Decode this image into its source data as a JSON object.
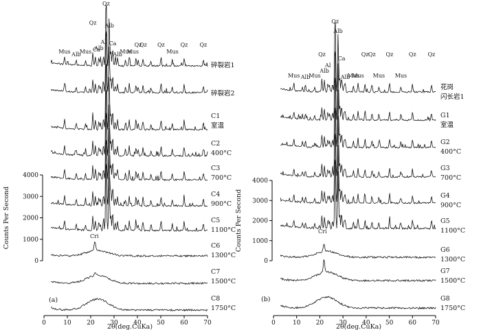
{
  "chart_data": [
    {
      "type": "line",
      "panel_label": "(a)",
      "xlabel": "2θ(deg.CuKa)",
      "ylabel": "Counts Per Second",
      "xlim": [
        0,
        70
      ],
      "x_ticks": [
        "0",
        "10",
        "20",
        "30",
        "40",
        "50",
        "60",
        "70"
      ],
      "ylim": [
        0,
        4000
      ],
      "y_ticks": [
        "0",
        "1000",
        "2000",
        "3000",
        "4000"
      ],
      "series": [
        {
          "label": "碎裂岩1",
          "sublabel": ""
        },
        {
          "label": "碎裂岩2",
          "sublabel": ""
        },
        {
          "label": "C1",
          "sublabel": "室温"
        },
        {
          "label": "C2",
          "sublabel": "400°C"
        },
        {
          "label": "C3",
          "sublabel": "700°C"
        },
        {
          "label": "C4",
          "sublabel": "900°C"
        },
        {
          "label": "C5",
          "sublabel": "1100°C"
        },
        {
          "label": "C6",
          "sublabel": "1300°C"
        },
        {
          "label": "C7",
          "sublabel": "1500°C"
        },
        {
          "label": "C8",
          "sublabel": "1750°C"
        }
      ],
      "peak_labels": [
        {
          "text": "Mus",
          "x": 8.8
        },
        {
          "text": "Alb",
          "x": 13.8
        },
        {
          "text": "Mus",
          "x": 17.8
        },
        {
          "text": "Ca",
          "x": 22.5
        },
        {
          "text": "Qz",
          "x": 20.9
        },
        {
          "text": "Alb",
          "x": 23.5
        },
        {
          "text": "Al",
          "x": 25.5
        },
        {
          "text": "Qz",
          "x": 26.6
        },
        {
          "text": "Alb",
          "x": 28.0
        },
        {
          "text": "Ca",
          "x": 29.4
        },
        {
          "text": "Alb",
          "x": 31.5
        },
        {
          "text": "Mus",
          "x": 35.0
        },
        {
          "text": "Mus",
          "x": 38.0
        },
        {
          "text": "Qz",
          "x": 40.3
        },
        {
          "text": "Qz",
          "x": 42.5
        },
        {
          "text": "Qz",
          "x": 50.1
        },
        {
          "text": "Mus",
          "x": 55.0
        },
        {
          "text": "Qz",
          "x": 60.0
        },
        {
          "text": "Qz",
          "x": 68.2
        }
      ],
      "annotations": [
        {
          "text": "Cri",
          "x": 21.8
        }
      ]
    },
    {
      "type": "line",
      "panel_label": "(b)",
      "xlabel": "2θ(deg.CuKa)",
      "ylabel": "Counts Per Second",
      "xlim": [
        0,
        70
      ],
      "x_ticks": [
        "0",
        "10",
        "20",
        "30",
        "40",
        "50",
        "60",
        "70"
      ],
      "ylim": [
        0,
        4000
      ],
      "y_ticks": [
        "0",
        "1000",
        "2000",
        "3000",
        "4000"
      ],
      "series": [
        {
          "label": "花岗",
          "sublabel": "闪长岩1"
        },
        {
          "label": "G1",
          "sublabel": "室温"
        },
        {
          "label": "G2",
          "sublabel": "400°C"
        },
        {
          "label": "G3",
          "sublabel": "700°C"
        },
        {
          "label": "G4",
          "sublabel": "900°C"
        },
        {
          "label": "G5",
          "sublabel": "1100°C"
        },
        {
          "label": "G6",
          "sublabel": "1300°C"
        },
        {
          "label": "G7",
          "sublabel": "1500°C"
        },
        {
          "label": "G8",
          "sublabel": "1750°C"
        }
      ],
      "peak_labels": [
        {
          "text": "Mus",
          "x": 8.8
        },
        {
          "text": "Alb",
          "x": 13.8
        },
        {
          "text": "Mus",
          "x": 17.8
        },
        {
          "text": "Qz",
          "x": 20.9
        },
        {
          "text": "Alb",
          "x": 22.0
        },
        {
          "text": "Al",
          "x": 23.5
        },
        {
          "text": "Qz",
          "x": 26.6
        },
        {
          "text": "Alb",
          "x": 27.9
        },
        {
          "text": "Ca",
          "x": 29.4
        },
        {
          "text": "Alb",
          "x": 31.0
        },
        {
          "text": "Mus",
          "x": 34.5
        },
        {
          "text": "Mus",
          "x": 36.5
        },
        {
          "text": "Qz",
          "x": 39.5
        },
        {
          "text": "Qz",
          "x": 42.5
        },
        {
          "text": "Mus",
          "x": 45.5
        },
        {
          "text": "Qz",
          "x": 50.1
        },
        {
          "text": "Mus",
          "x": 55.0
        },
        {
          "text": "Qz",
          "x": 60.0
        },
        {
          "text": "Qz",
          "x": 68.2
        }
      ],
      "annotations": [
        {
          "text": "Cri",
          "x": 21.8
        }
      ]
    }
  ]
}
